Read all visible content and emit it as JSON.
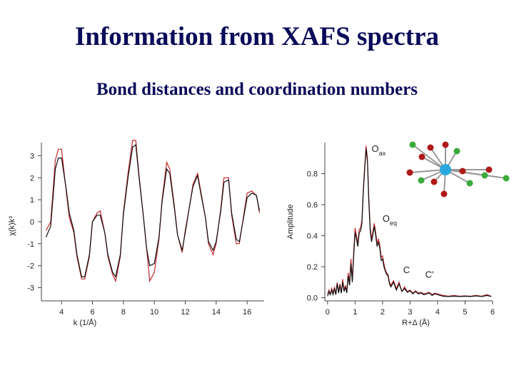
{
  "title": "Information from XAFS spectra",
  "subtitle": "Bond distances and coordination numbers",
  "colors": {
    "title": "#0a0a5a",
    "experiment": "#c0272d",
    "fit": "#111111",
    "atom_center": "#29a8e0",
    "atom_red": "#b01818",
    "atom_green": "#3aaa3a"
  },
  "chart_data": [
    {
      "type": "line",
      "xlabel": "k (1/Å)",
      "ylabel": "χ(k)k³",
      "xlim": [
        2.7,
        17.1
      ],
      "ylim": [
        -3.6,
        3.6
      ],
      "xticks": [
        4,
        6,
        8,
        10,
        12,
        14,
        16
      ],
      "yticks": [
        -3,
        -2,
        -1,
        0,
        1,
        2,
        3
      ],
      "series": [
        {
          "color": "#c0272d",
          "x": [
            3.0,
            3.3,
            3.6,
            3.8,
            4.0,
            4.3,
            4.5,
            4.8,
            5.0,
            5.3,
            5.5,
            5.8,
            6.0,
            6.3,
            6.5,
            6.8,
            7.0,
            7.3,
            7.5,
            7.8,
            8.0,
            8.3,
            8.6,
            8.8,
            9.0,
            9.3,
            9.5,
            9.7,
            10.0,
            10.3,
            10.5,
            10.8,
            11.0,
            11.3,
            11.5,
            11.8,
            12.0,
            12.3,
            12.5,
            12.8,
            13.0,
            13.3,
            13.5,
            13.8,
            14.0,
            14.3,
            14.5,
            14.8,
            15.0,
            15.3,
            15.5,
            15.8,
            16.0,
            16.3,
            16.6,
            16.8
          ],
          "values": [
            -0.4,
            0.0,
            2.8,
            3.3,
            3.3,
            1.4,
            0.2,
            -0.5,
            -1.6,
            -2.6,
            -2.6,
            -1.6,
            0.0,
            0.4,
            0.5,
            -0.5,
            -1.6,
            -2.4,
            -2.7,
            -1.6,
            0.4,
            2.2,
            3.7,
            3.7,
            2.2,
            0.2,
            -1.2,
            -2.7,
            -2.3,
            -0.8,
            1.0,
            2.7,
            2.4,
            0.7,
            -0.6,
            -1.4,
            -0.4,
            0.8,
            1.7,
            2.2,
            1.4,
            0.2,
            -1.0,
            -1.5,
            -1.0,
            0.6,
            2.0,
            2.0,
            0.3,
            -1.0,
            -1.0,
            0.4,
            1.3,
            1.4,
            1.2,
            0.4
          ]
        },
        {
          "color": "#111111",
          "x": [
            3.0,
            3.3,
            3.6,
            3.8,
            4.0,
            4.3,
            4.5,
            4.8,
            5.0,
            5.3,
            5.5,
            5.8,
            6.0,
            6.3,
            6.5,
            6.8,
            7.0,
            7.3,
            7.5,
            7.8,
            8.0,
            8.3,
            8.6,
            8.8,
            9.0,
            9.3,
            9.5,
            9.7,
            10.0,
            10.3,
            10.5,
            10.8,
            11.0,
            11.3,
            11.5,
            11.8,
            12.0,
            12.3,
            12.5,
            12.8,
            13.0,
            13.3,
            13.5,
            13.8,
            14.0,
            14.3,
            14.5,
            14.8,
            15.0,
            15.3,
            15.5,
            15.8,
            16.0,
            16.3,
            16.6,
            16.8
          ],
          "values": [
            -0.7,
            -0.2,
            2.4,
            2.9,
            2.9,
            1.5,
            0.4,
            -0.4,
            -1.5,
            -2.5,
            -2.5,
            -1.5,
            0.0,
            0.3,
            0.3,
            -0.5,
            -1.5,
            -2.3,
            -2.5,
            -1.5,
            0.3,
            2.0,
            3.4,
            3.5,
            2.1,
            0.2,
            -1.2,
            -2.0,
            -1.9,
            -0.7,
            0.9,
            2.4,
            2.2,
            0.6,
            -0.6,
            -1.3,
            -0.5,
            0.8,
            1.6,
            2.1,
            1.3,
            0.2,
            -0.9,
            -1.3,
            -0.9,
            0.5,
            1.8,
            1.9,
            0.4,
            -0.8,
            -0.9,
            0.3,
            1.1,
            1.3,
            1.2,
            0.5
          ]
        }
      ]
    },
    {
      "type": "line",
      "xlabel": "R+Δ (Å)",
      "ylabel": "Amplitude",
      "xlim": [
        -0.1,
        6.0
      ],
      "ylim": [
        -0.02,
        1.0
      ],
      "xticks": [
        0,
        1,
        2,
        3,
        4,
        5,
        6
      ],
      "yticks": [
        0.0,
        0.2,
        0.4,
        0.6,
        0.8
      ],
      "yticklabels": [
        "0.0",
        "0.2",
        "0.4",
        "0.6",
        "0.8"
      ],
      "annotations": [
        {
          "text": "O",
          "sub": "ax",
          "x": 1.6,
          "y": 0.94
        },
        {
          "text": "O",
          "sub": "eq",
          "x": 2.0,
          "y": 0.49
        },
        {
          "text": "C",
          "sub": "",
          "x": 2.75,
          "y": 0.16
        },
        {
          "text": "C'",
          "sub": "",
          "x": 3.55,
          "y": 0.13
        }
      ],
      "series": [
        {
          "color": "#c0272d",
          "x": [
            0.0,
            0.05,
            0.1,
            0.15,
            0.2,
            0.25,
            0.3,
            0.35,
            0.4,
            0.45,
            0.5,
            0.55,
            0.6,
            0.65,
            0.7,
            0.75,
            0.8,
            0.85,
            0.9,
            0.95,
            1.0,
            1.05,
            1.1,
            1.15,
            1.2,
            1.25,
            1.3,
            1.35,
            1.4,
            1.45,
            1.5,
            1.55,
            1.6,
            1.65,
            1.7,
            1.75,
            1.8,
            1.85,
            1.9,
            1.95,
            2.0,
            2.05,
            2.1,
            2.15,
            2.2,
            2.25,
            2.3,
            2.4,
            2.5,
            2.6,
            2.7,
            2.8,
            2.9,
            3.0,
            3.1,
            3.2,
            3.3,
            3.4,
            3.5,
            3.6,
            3.7,
            3.8,
            3.9,
            4.0,
            4.2,
            4.4,
            4.6,
            4.8,
            5.0,
            5.2,
            5.4,
            5.6,
            5.8,
            5.95
          ],
          "values": [
            0.02,
            0.05,
            0.02,
            0.06,
            0.03,
            0.07,
            0.02,
            0.1,
            0.04,
            0.09,
            0.03,
            0.12,
            0.05,
            0.08,
            0.04,
            0.16,
            0.1,
            0.25,
            0.12,
            0.3,
            0.45,
            0.4,
            0.35,
            0.44,
            0.45,
            0.5,
            0.7,
            0.85,
            0.98,
            0.9,
            0.65,
            0.45,
            0.38,
            0.43,
            0.48,
            0.42,
            0.35,
            0.38,
            0.34,
            0.26,
            0.27,
            0.22,
            0.18,
            0.16,
            0.15,
            0.1,
            0.08,
            0.11,
            0.06,
            0.1,
            0.04,
            0.07,
            0.04,
            0.05,
            0.03,
            0.045,
            0.03,
            0.035,
            0.025,
            0.03,
            0.035,
            0.02,
            0.03,
            0.025,
            0.015,
            0.01,
            0.015,
            0.01,
            0.012,
            0.01,
            0.015,
            0.01,
            0.02,
            0.01
          ]
        },
        {
          "color": "#111111",
          "x": [
            0.0,
            0.05,
            0.1,
            0.15,
            0.2,
            0.25,
            0.3,
            0.35,
            0.4,
            0.45,
            0.5,
            0.55,
            0.6,
            0.65,
            0.7,
            0.75,
            0.8,
            0.85,
            0.9,
            0.95,
            1.0,
            1.05,
            1.1,
            1.15,
            1.2,
            1.25,
            1.3,
            1.35,
            1.4,
            1.45,
            1.5,
            1.55,
            1.6,
            1.65,
            1.7,
            1.75,
            1.8,
            1.85,
            1.9,
            1.95,
            2.0,
            2.05,
            2.1,
            2.15,
            2.2,
            2.25,
            2.3,
            2.4,
            2.5,
            2.6,
            2.7,
            2.8,
            2.9,
            3.0,
            3.1,
            3.2,
            3.3,
            3.4,
            3.5,
            3.6,
            3.7,
            3.8,
            3.9,
            4.0,
            4.2,
            4.4,
            4.6,
            4.8,
            5.0,
            5.2,
            5.4,
            5.6,
            5.8,
            5.95
          ],
          "values": [
            0.01,
            0.04,
            0.02,
            0.05,
            0.02,
            0.06,
            0.02,
            0.09,
            0.03,
            0.08,
            0.03,
            0.1,
            0.04,
            0.07,
            0.03,
            0.14,
            0.08,
            0.22,
            0.1,
            0.27,
            0.42,
            0.38,
            0.33,
            0.42,
            0.43,
            0.48,
            0.68,
            0.83,
            0.96,
            0.88,
            0.62,
            0.43,
            0.36,
            0.41,
            0.46,
            0.4,
            0.33,
            0.36,
            0.32,
            0.24,
            0.25,
            0.2,
            0.17,
            0.15,
            0.14,
            0.09,
            0.07,
            0.1,
            0.05,
            0.09,
            0.04,
            0.06,
            0.035,
            0.045,
            0.025,
            0.04,
            0.025,
            0.03,
            0.02,
            0.025,
            0.03,
            0.015,
            0.025,
            0.02,
            0.01,
            0.008,
            0.01,
            0.008,
            0.01,
            0.008,
            0.012,
            0.008,
            0.015,
            0.008
          ]
        }
      ]
    }
  ]
}
